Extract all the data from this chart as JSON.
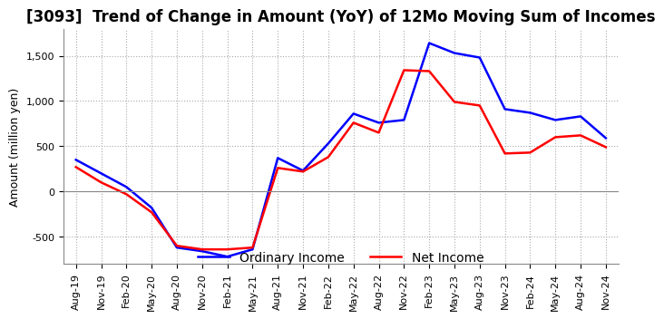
{
  "title": "[3093]  Trend of Change in Amount (YoY) of 12Mo Moving Sum of Incomes",
  "ylabel": "Amount (million yen)",
  "xlabels": [
    "Aug-19",
    "Nov-19",
    "Feb-20",
    "May-20",
    "Aug-20",
    "Nov-20",
    "Feb-21",
    "May-21",
    "Aug-21",
    "Nov-21",
    "Feb-22",
    "May-22",
    "Aug-22",
    "Nov-22",
    "Feb-23",
    "May-23",
    "Aug-23",
    "Nov-23",
    "Feb-24",
    "May-24",
    "Aug-24",
    "Nov-24"
  ],
  "ordinary_income": [
    350,
    200,
    50,
    -180,
    -620,
    -660,
    -720,
    -640,
    370,
    230,
    530,
    860,
    760,
    790,
    1640,
    1530,
    1480,
    910,
    870,
    790,
    830,
    590
  ],
  "net_income": [
    270,
    100,
    -30,
    -230,
    -600,
    -640,
    -640,
    -620,
    260,
    220,
    380,
    760,
    650,
    1340,
    1330,
    990,
    950,
    420,
    430,
    600,
    620,
    490
  ],
  "ordinary_color": "#0000ff",
  "net_color": "#ff0000",
  "ylim": [
    -800,
    1800
  ],
  "yticks": [
    -500,
    0,
    500,
    1000,
    1500
  ],
  "background_color": "#ffffff",
  "grid_color": "#aaaaaa",
  "title_fontsize": 12,
  "axis_fontsize": 9,
  "tick_fontsize": 8,
  "legend_fontsize": 10
}
